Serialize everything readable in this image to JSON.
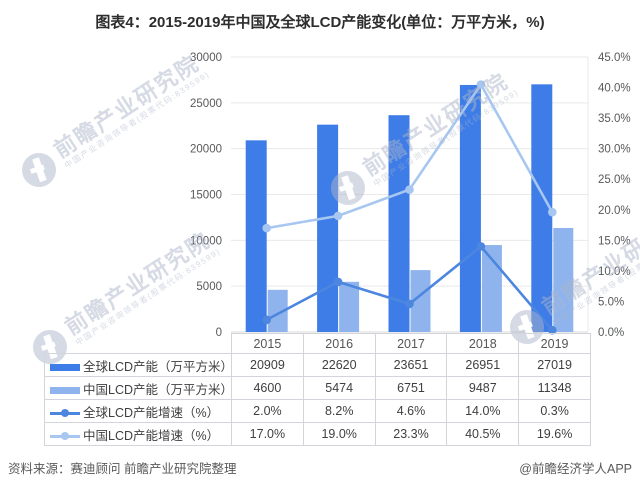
{
  "title": "图表4：2015-2019年中国及全球LCD产能变化(单位：万平方米，%)",
  "source": {
    "left": "资料来源：赛迪顾问 前瞻产业研究院整理",
    "right": "@前瞻经济学人APP"
  },
  "watermark": {
    "text": "前瞻产业研究院",
    "subtext": "中国产业咨询领导者(股票代码:839599)"
  },
  "colors": {
    "bar_global": "#3e7de7",
    "bar_china": "#8fb4ed",
    "line_global": "#4c86df",
    "line_china": "#a7c7f1",
    "gridline": "#e9e9e9",
    "axis_line": "#d9d9d9",
    "table_border": "#d2d6dc",
    "axis_text": "#58595b",
    "body_text": "#3f3f3f"
  },
  "chart_data": {
    "type": "combo-bar-line",
    "title": "图表4：2015-2019年中国及全球LCD产能变化(单位：万平方米，%)",
    "categories": [
      "2015",
      "2016",
      "2017",
      "2018",
      "2019"
    ],
    "series": [
      {
        "name": "全球LCD产能（万平方米）",
        "type": "bar",
        "axis": "left",
        "color": "#3e7de7",
        "values": [
          20909,
          22620,
          23651,
          26951,
          27019
        ],
        "display": [
          "20909",
          "22620",
          "23651",
          "26951",
          "27019"
        ]
      },
      {
        "name": "中国LCD产能（万平方米）",
        "type": "bar",
        "axis": "left",
        "color": "#8fb4ed",
        "values": [
          4600,
          5474,
          6751,
          9487,
          11348
        ],
        "display": [
          "4600",
          "5474",
          "6751",
          "9487",
          "11348"
        ]
      },
      {
        "name": "全球LCD产能增速（%）",
        "type": "line",
        "axis": "right",
        "color": "#4c86df",
        "values": [
          2.0,
          8.2,
          4.6,
          14.0,
          0.3
        ],
        "display": [
          "2.0%",
          "8.2%",
          "4.6%",
          "14.0%",
          "0.3%"
        ]
      },
      {
        "name": "中国LCD产能增速（%）",
        "type": "line",
        "axis": "right",
        "color": "#a7c7f1",
        "values": [
          17.0,
          19.0,
          23.3,
          40.5,
          19.6
        ],
        "display": [
          "17.0%",
          "19.0%",
          "23.3%",
          "40.5%",
          "19.6%"
        ]
      }
    ],
    "left_axis": {
      "min": 0,
      "max": 30000,
      "step": 5000,
      "ticks": [
        "0",
        "5000",
        "10000",
        "15000",
        "20000",
        "25000",
        "30000"
      ]
    },
    "right_axis": {
      "min": 0,
      "max": 45,
      "step": 5,
      "ticks": [
        "0.0%",
        "5.0%",
        "10.0%",
        "15.0%",
        "20.0%",
        "25.0%",
        "30.0%",
        "35.0%",
        "40.0%",
        "45.0%"
      ]
    },
    "grid": true,
    "legend_position": "table-below-chart"
  }
}
